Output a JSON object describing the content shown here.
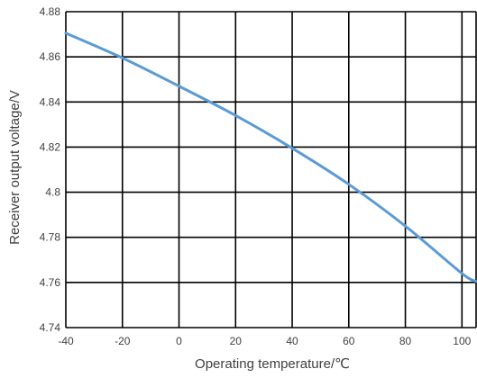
{
  "chart_data": {
    "type": "line",
    "title": "",
    "xlabel": "Operating temperature/℃",
    "ylabel": "Receiver output voltage/V",
    "xlim": [
      -40,
      105
    ],
    "ylim": [
      4.74,
      4.88
    ],
    "xticks": [
      -40,
      -20,
      0,
      20,
      40,
      60,
      80,
      100
    ],
    "xtick_labels": [
      "-40",
      "-20",
      "0",
      "20",
      "40",
      "60",
      "80",
      "100"
    ],
    "yticks": [
      4.74,
      4.76,
      4.78,
      4.8,
      4.82,
      4.84,
      4.86,
      4.88
    ],
    "ytick_labels": [
      "4.74",
      "4.76",
      "4.78",
      "4.8",
      "4.82",
      "4.84",
      "4.86",
      "4.88"
    ],
    "grid": true,
    "legend": "none",
    "series": [
      {
        "color": "#5b9bd5",
        "x": [
          -40,
          -20,
          0,
          20,
          40,
          60,
          80,
          100,
          105
        ],
        "y": [
          4.8705,
          4.8595,
          4.847,
          4.834,
          4.8195,
          4.8035,
          4.785,
          4.764,
          4.7605
        ]
      }
    ]
  }
}
